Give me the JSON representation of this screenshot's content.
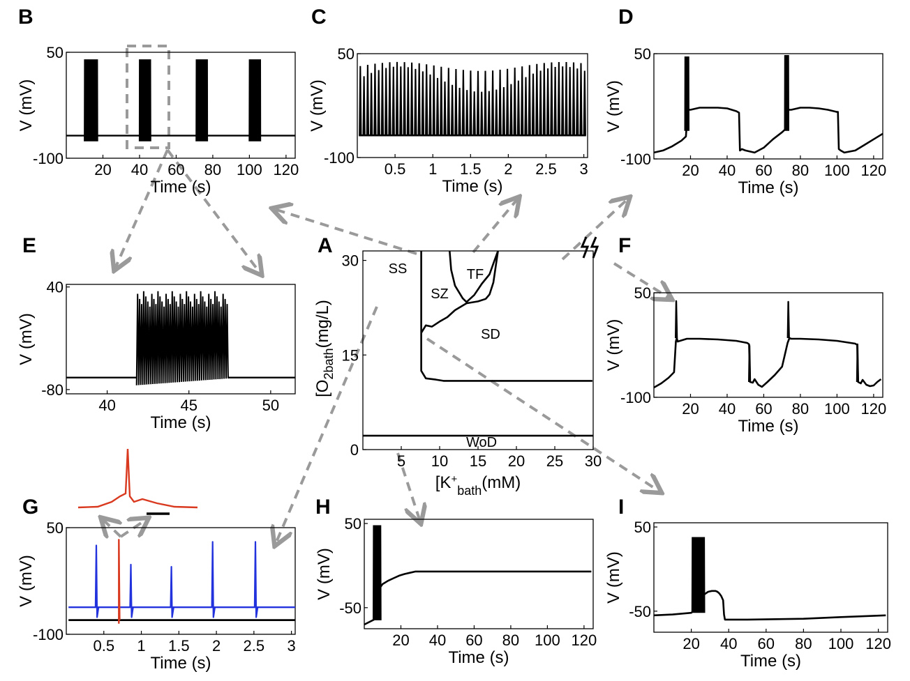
{
  "colors": {
    "trace": "#000000",
    "arrow": "#9a9a9a",
    "red": "#d9391f",
    "blue": "#2233dd"
  },
  "chart_data": [
    {
      "id": "A",
      "panel_label": "A",
      "type": "line",
      "title": "",
      "xlabel_main": "[K",
      "xlabel_sup": "+",
      "xlabel_sub": "bath",
      "xlabel_tail": "(mM)",
      "ylabel_main": "[O",
      "ylabel_sub1": "2",
      "ylabel_sub2": "bath",
      "ylabel_tail": "(mg/L)",
      "xlim": [
        0,
        30
      ],
      "ylim": [
        0,
        31.5
      ],
      "xticks": [
        5,
        10,
        15,
        20,
        25,
        30
      ],
      "yticks": [
        0,
        15,
        30
      ],
      "regions": [
        "SS",
        "SZ",
        "TF",
        "SD",
        "WoD"
      ],
      "series": [
        {
          "name": "SS boundary",
          "x": [
            7.6,
            7.6,
            7.6,
            8.2,
            9.5,
            10.5,
            29.9
          ],
          "y": [
            31.5,
            18.5,
            12.5,
            11.3,
            11.1,
            10.9,
            10.9
          ]
        },
        {
          "name": "SZ/SD boundary",
          "x": [
            7.6,
            8.2,
            9.0,
            10.0,
            11.0,
            12.0,
            13.5,
            15.0,
            16.0,
            16.5,
            17.0,
            17.6
          ],
          "y": [
            18.5,
            19.7,
            19.5,
            20.3,
            21.0,
            22.1,
            23.2,
            23.5,
            23.9,
            24.6,
            26.5,
            31.5
          ]
        },
        {
          "name": "TF boundary",
          "x": [
            11.3,
            11.5,
            12.0,
            13.0,
            13.5,
            14.5,
            15.5,
            16.5,
            17.0,
            17.6
          ],
          "y": [
            31.5,
            28.5,
            26.0,
            24.0,
            23.4,
            24.5,
            26.3,
            27.8,
            29.5,
            31.5
          ]
        },
        {
          "name": "WoD boundary",
          "x": [
            0,
            30
          ],
          "y": [
            2.2,
            2.2
          ]
        }
      ]
    },
    {
      "id": "B",
      "panel_label": "B",
      "type": "line",
      "title": "",
      "xlabel": "Time (s)",
      "ylabel": "V (mV)",
      "xlim": [
        0,
        125
      ],
      "ylim": [
        -100,
        50
      ],
      "xticks": [
        20,
        40,
        60,
        80,
        100,
        120
      ],
      "yticks": [
        50,
        -100
      ],
      "baseline_mV": -68,
      "burst_peak_mV": 40,
      "burst_trough_mV": -76,
      "bursts": [
        [
          10,
          17
        ],
        [
          40,
          46
        ],
        [
          71,
          77
        ],
        [
          100,
          106
        ]
      ]
    },
    {
      "id": "C",
      "panel_label": "C",
      "type": "line",
      "title": "",
      "xlabel": "Time (s)",
      "ylabel": "V (mV)",
      "xlim": [
        0,
        3.05
      ],
      "ylim": [
        -100,
        50
      ],
      "xticks": [
        0.5,
        1,
        1.5,
        2,
        2.5,
        3
      ],
      "yticks": [
        50,
        -100
      ],
      "spike_count": 62,
      "trough_mV": -68,
      "peak_range_mV": [
        -5,
        38
      ]
    },
    {
      "id": "D",
      "panel_label": "D",
      "type": "line",
      "title": "",
      "xlabel": "Time (s)",
      "ylabel": "V (mV)",
      "xlim": [
        0,
        125
      ],
      "ylim": [
        -100,
        50
      ],
      "xticks": [
        20,
        40,
        60,
        80,
        100,
        120
      ],
      "yticks": [
        50,
        -100
      ],
      "x": [
        0,
        5,
        10,
        15,
        17.5,
        18.5,
        20,
        25,
        30,
        35,
        40,
        45,
        46.5,
        47,
        48,
        50,
        55,
        60,
        65,
        70,
        72.5,
        73.5,
        75,
        80,
        85,
        90,
        95,
        100,
        100.5,
        101,
        102,
        104,
        110,
        115,
        120,
        125
      ],
      "y": [
        -91,
        -88,
        -82,
        -74,
        -68,
        -30,
        -30,
        -27,
        -27,
        -27,
        -28,
        -32,
        -34,
        -88,
        -86,
        -88,
        -91,
        -84,
        -72,
        -62,
        -56,
        -30,
        -30,
        -27,
        -27,
        -28,
        -30,
        -33,
        -33,
        -86,
        -88,
        -91,
        -88,
        -80,
        -72,
        -64
      ],
      "spike_bursts": [
        [
          17,
          19,
          46
        ],
        [
          71.5,
          73.5,
          48
        ]
      ],
      "burst_min_mV": -60
    },
    {
      "id": "E",
      "panel_label": "E",
      "type": "line",
      "title": "",
      "xlabel": "Time (s)",
      "ylabel": "V (mV)",
      "xlim": [
        37.5,
        51.5
      ],
      "ylim": [
        -85,
        43
      ],
      "xticks": [
        40,
        45,
        50
      ],
      "yticks": [
        40,
        -80
      ],
      "baseline_mV": -66,
      "burst_start_s": 41.8,
      "burst_end_s": 47.4,
      "burst_peak_mV": 35,
      "burst_trough_mV": -75
    },
    {
      "id": "F",
      "panel_label": "F",
      "type": "line",
      "title": "",
      "xlabel": "Time (s)",
      "ylabel": "V (mV)",
      "xlim": [
        0,
        125
      ],
      "ylim": [
        -100,
        50
      ],
      "xticks": [
        20,
        40,
        60,
        80,
        100,
        120
      ],
      "yticks": [
        50,
        -100
      ],
      "x": [
        0,
        4,
        8,
        11,
        12,
        12.5,
        13,
        18,
        25,
        35,
        45,
        51,
        52,
        52.5,
        54,
        55,
        57,
        59,
        62,
        66,
        70,
        73,
        74,
        75,
        80,
        90,
        100,
        110,
        111,
        111.5,
        113,
        114,
        116,
        118,
        120,
        122,
        124
      ],
      "y": [
        -86,
        -80,
        -72,
        -64,
        -20,
        -15,
        -20,
        -16,
        -16,
        -17,
        -19,
        -22,
        -24,
        -78,
        -79,
        -74,
        -82,
        -85,
        -78,
        -68,
        -56,
        -22,
        -15,
        -16,
        -16,
        -17,
        -19,
        -23,
        -25,
        -78,
        -80,
        -75,
        -82,
        -84,
        -83,
        -78,
        -74
      ],
      "spikes": [
        [
          12.2,
          38
        ],
        [
          52.2,
          -26
        ],
        [
          73.4,
          37
        ],
        [
          111.2,
          -24
        ]
      ]
    },
    {
      "id": "G",
      "panel_label": "G",
      "type": "line",
      "title": "",
      "xlabel": "Time (s)",
      "ylabel": "V (mV)",
      "xlim": [
        0,
        3.05
      ],
      "ylim": [
        -100,
        50
      ],
      "xticks": [
        0.5,
        1,
        1.5,
        2,
        2.5,
        3
      ],
      "yticks": [
        50,
        -100
      ],
      "series": [
        {
          "name": "blue",
          "color": "#2233dd",
          "baseline_mV": -62,
          "spikes": [
            [
              0.4,
              25
            ],
            [
              0.86,
              -2
            ],
            [
              1.4,
              -5
            ],
            [
              1.95,
              30
            ],
            [
              2.52,
              30
            ]
          ]
        },
        {
          "name": "black",
          "color": "#000000",
          "baseline_mV": -80,
          "spikes": []
        },
        {
          "name": "red",
          "color": "#d9391f",
          "spikes": [
            [
              0.7,
              33
            ]
          ]
        }
      ],
      "inset": {
        "type": "line",
        "color": "#d9391f",
        "scalebar": true
      }
    },
    {
      "id": "H",
      "panel_label": "H",
      "type": "line",
      "title": "",
      "xlabel": "Time (s)",
      "ylabel": "V (mV)",
      "xlim": [
        0,
        125
      ],
      "ylim": [
        -75,
        55
      ],
      "xticks": [
        20,
        40,
        60,
        80,
        100,
        120
      ],
      "yticks": [
        50,
        -50
      ],
      "burst": [
        5,
        9
      ],
      "burst_peak_mV": 48,
      "burst_trough_mV": -65,
      "x": [
        0,
        5.5,
        8,
        10,
        13,
        16,
        19,
        22,
        25,
        28,
        40,
        60,
        80,
        100,
        124
      ],
      "y": [
        -70,
        -64,
        -28,
        -22,
        -18,
        -15,
        -12,
        -10,
        -8.5,
        -7,
        -7,
        -7,
        -7,
        -7,
        -7
      ]
    },
    {
      "id": "I",
      "panel_label": "I",
      "type": "line",
      "title": "",
      "xlabel": "Time (s)",
      "ylabel": "V (mV)",
      "xlim": [
        0,
        125
      ],
      "ylim": [
        -75,
        55
      ],
      "xticks": [
        20,
        40,
        60,
        80,
        100,
        120
      ],
      "yticks": [
        50,
        -50
      ],
      "x": [
        0,
        10,
        20,
        21,
        26,
        27,
        29,
        31,
        33,
        34,
        35,
        36,
        37,
        37.5,
        38,
        50,
        80,
        100,
        124
      ],
      "y": [
        -55,
        -54,
        -52,
        -50,
        -32,
        -30,
        -27,
        -26,
        -26,
        -27,
        -29,
        -32,
        -37,
        -54,
        -60,
        -60,
        -59,
        -57,
        -55
      ],
      "burst": [
        20.5,
        27
      ],
      "burst_peak_mV": 38,
      "burst_trough_mV": -52
    }
  ]
}
